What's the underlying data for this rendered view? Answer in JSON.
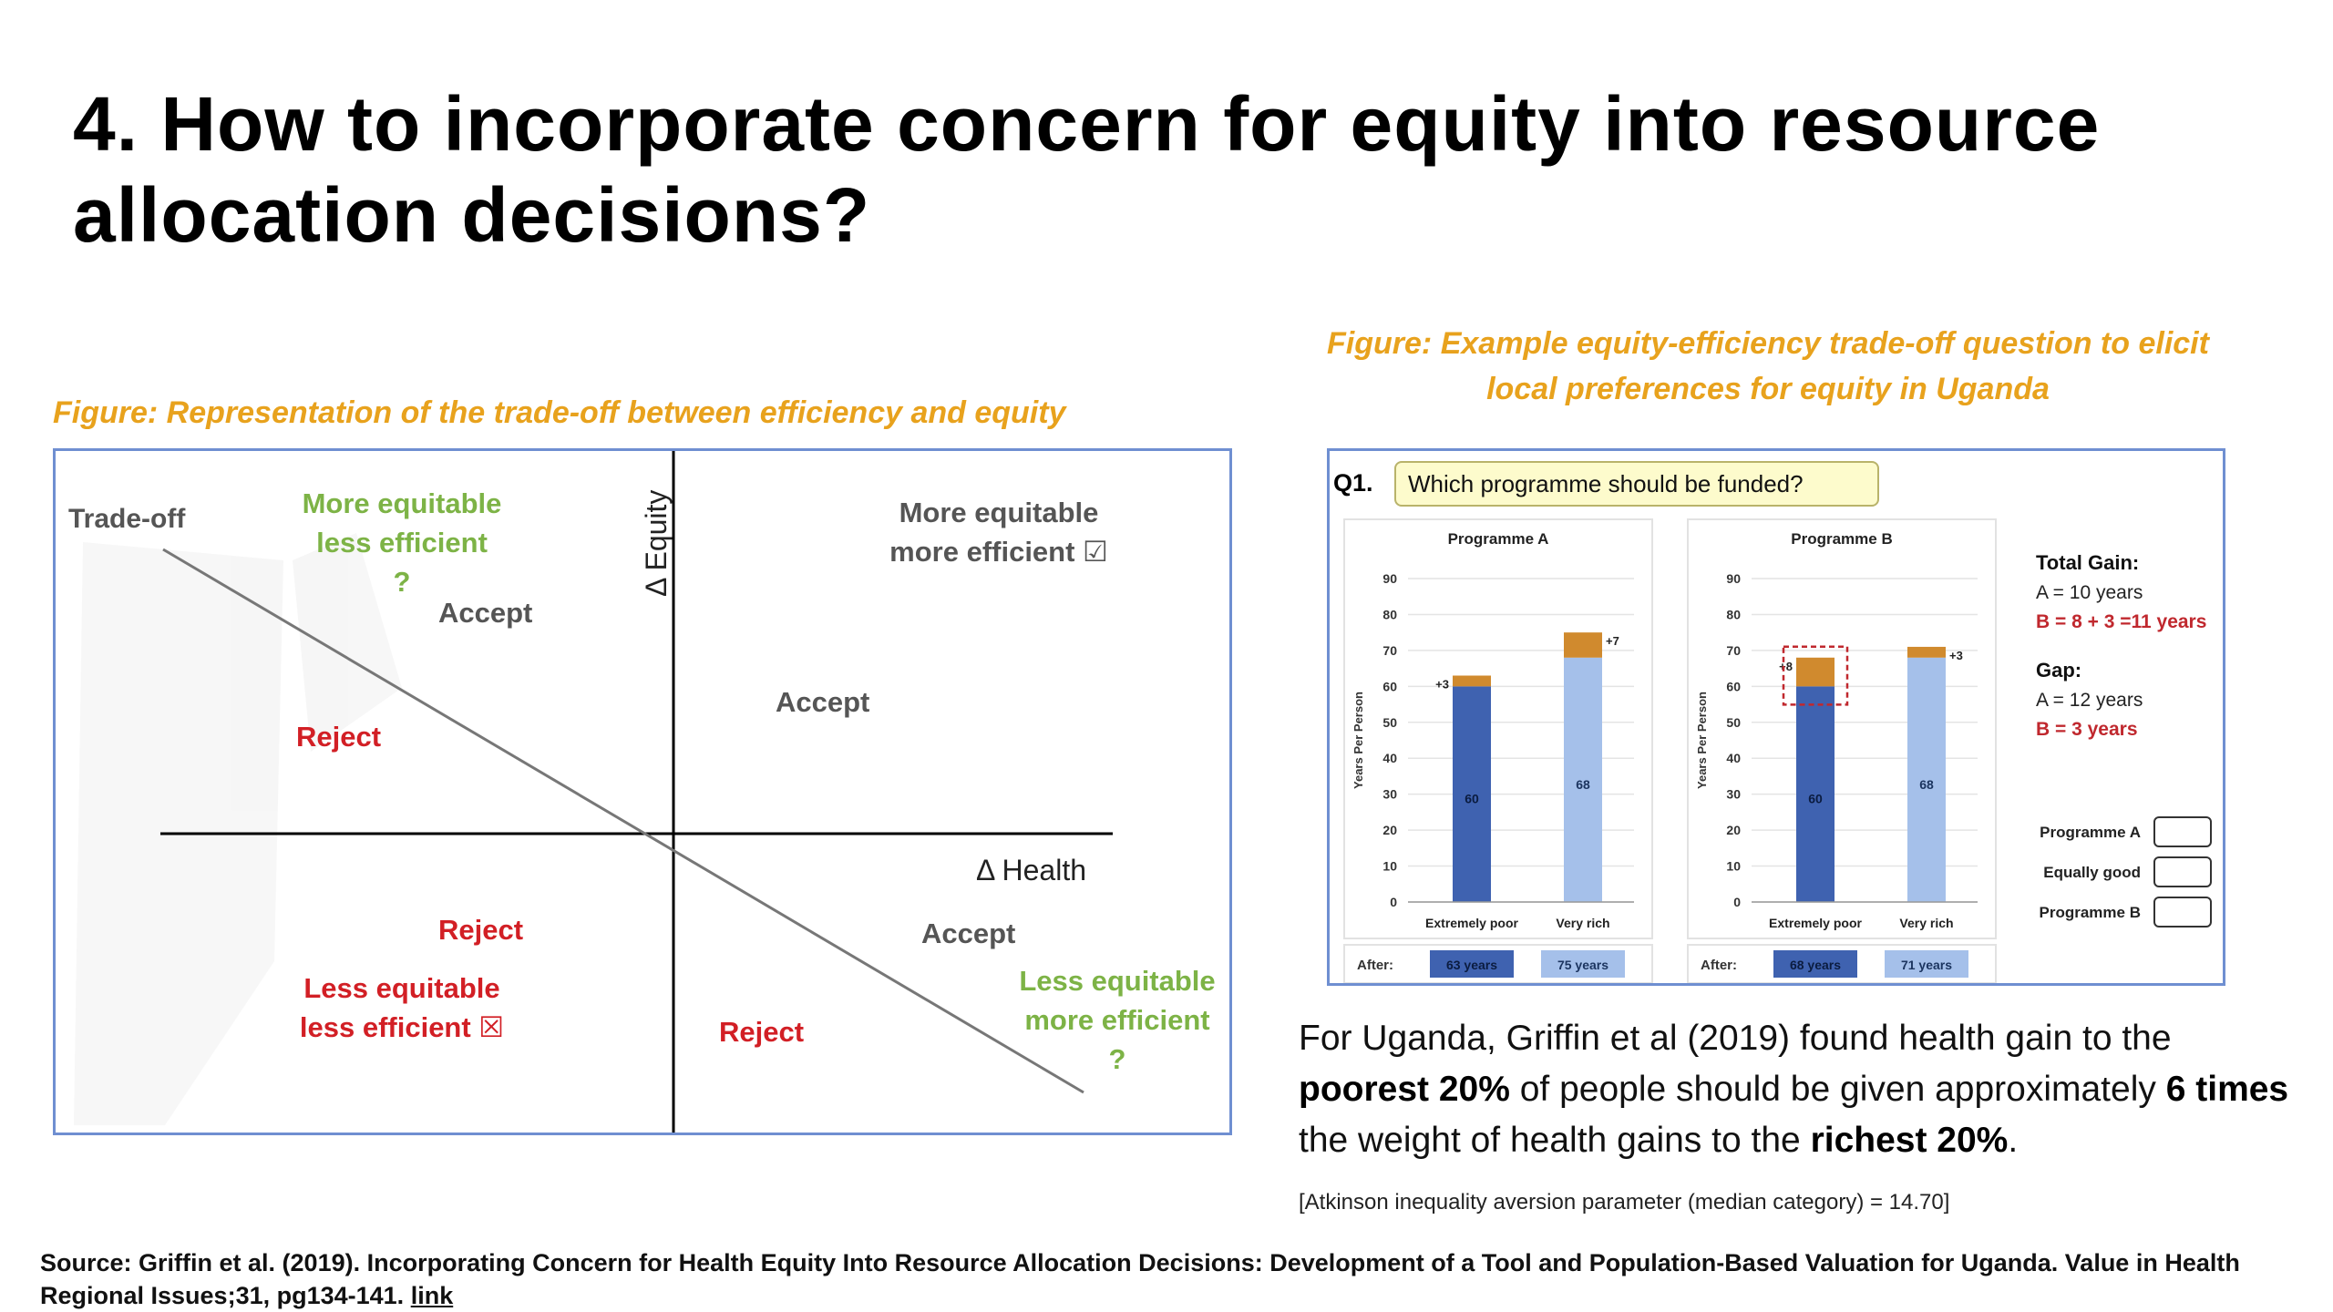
{
  "title": "4. How to incorporate concern for equity into resource allocation decisions?",
  "left_figure": {
    "caption": "Figure: Representation of the trade-off between efficiency and equity",
    "tradeoff_label": "Trade-off",
    "axis_equity": "Δ Equity",
    "axis_health": "Δ Health",
    "top_left_green": {
      "line1": "More equitable",
      "line2": "less efficient",
      "line3": "?"
    },
    "top_left_accept": "Accept",
    "top_left_reject": "Reject",
    "top_right": {
      "line1": "More equitable",
      "line2": "more efficient ☑"
    },
    "top_right_accept": "Accept",
    "bottom_left_reject": "Reject",
    "bottom_left_red": {
      "line1": "Less equitable",
      "line2": "less efficient ☒"
    },
    "bottom_right_accept": "Accept",
    "bottom_right_reject": "Reject",
    "bottom_right_green": {
      "line1": "Less equitable",
      "line2": "more efficient",
      "line3": "?"
    }
  },
  "right_figure": {
    "caption_line1": "Figure: Example equity-efficiency trade-off question to elicit",
    "caption_line2": "local preferences for equity in Uganda",
    "question_num": "Q1.",
    "question": "Which programme should be funded?",
    "y_axis_label": "Years Per Person",
    "y_ticks": [
      "0",
      "10",
      "20",
      "30",
      "40",
      "50",
      "60",
      "70",
      "80",
      "90"
    ],
    "after_label": "After:",
    "programmes": [
      {
        "name": "Programme A",
        "bars": [
          {
            "category": "Extremely poor",
            "base": 60,
            "gain": 3,
            "base_label": "60",
            "gain_label": "+3",
            "after": "63 years"
          },
          {
            "category": "Very rich",
            "base": 68,
            "gain": 7,
            "base_label": "68",
            "gain_label": "+7",
            "after": "75 years"
          }
        ]
      },
      {
        "name": "Programme B",
        "bars": [
          {
            "category": "Extremely poor",
            "base": 60,
            "gain": 8,
            "base_label": "60",
            "gain_label": "+8",
            "after": "68 years"
          },
          {
            "category": "Very rich",
            "base": 68,
            "gain": 3,
            "base_label": "68",
            "gain_label": "+3",
            "after": "71 years"
          }
        ]
      }
    ],
    "total_gain": {
      "heading": "Total Gain:",
      "a": "A = 10 years",
      "b": "B = 8 + 3 =11 years"
    },
    "gap": {
      "heading": "Gap:",
      "a": "A = 12 years",
      "b": "B = 3 years"
    },
    "options": [
      "Programme A",
      "Equally good",
      "Programme B"
    ],
    "colors": {
      "base_poor": "#3F62B0",
      "base_rich": "#A5C0EA",
      "gain": "#D08A2E",
      "highlight": "#C0282E"
    }
  },
  "body": {
    "t1": "For Uganda, Griffin et al (2019) found health gain to the ",
    "b1": "poorest 20%",
    "t2": " of people should be given approximately ",
    "b2": "6 times",
    "t3": " the weight of health gains to the ",
    "b3": "richest 20%",
    "t4": ".",
    "atkinson": "[Atkinson inequality aversion parameter (median category) = 14.70]"
  },
  "source": {
    "text": "Source: Griffin et al. (2019). Incorporating Concern for Health Equity Into Resource Allocation Decisions: Development of a Tool and Population-Based Valuation for Uganda. Value in Health Regional Issues;31, pg134-141.",
    "link": "link"
  }
}
